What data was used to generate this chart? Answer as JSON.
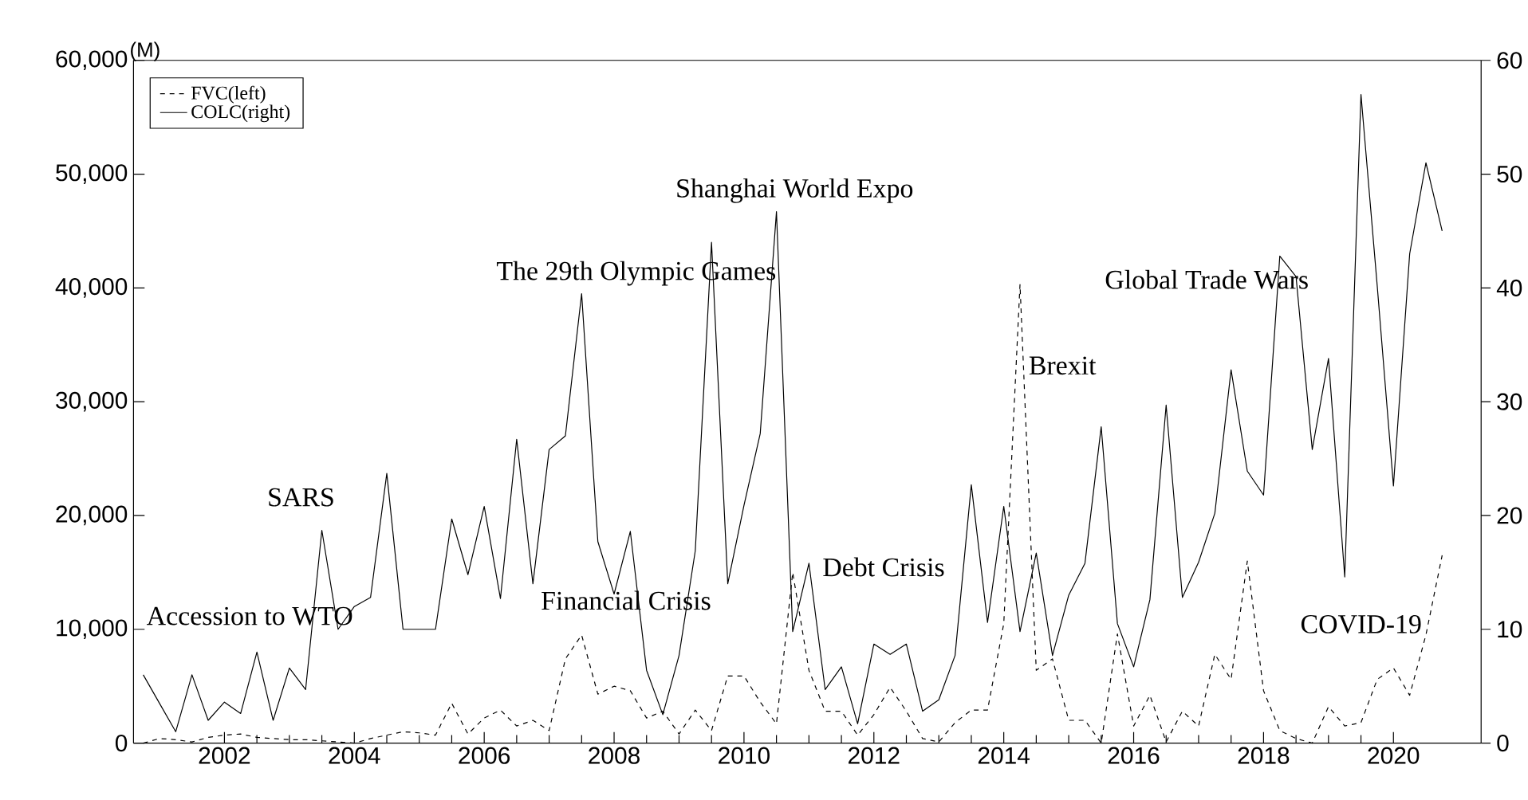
{
  "chart_data": {
    "type": "line",
    "ylabel": "(M)",
    "x": [
      2000.75,
      2001.0,
      2001.25,
      2001.5,
      2001.75,
      2002.0,
      2002.25,
      2002.5,
      2002.75,
      2003.0,
      2003.25,
      2003.5,
      2003.75,
      2004.0,
      2004.25,
      2004.5,
      2004.75,
      2005.0,
      2005.25,
      2005.5,
      2005.75,
      2006.0,
      2006.25,
      2006.5,
      2006.75,
      2007.0,
      2007.25,
      2007.5,
      2007.75,
      2008.0,
      2008.25,
      2008.5,
      2008.75,
      2009.0,
      2009.25,
      2009.5,
      2009.75,
      2010.0,
      2010.25,
      2010.5,
      2010.75,
      2011.0,
      2011.25,
      2011.5,
      2011.75,
      2012.0,
      2012.25,
      2012.5,
      2012.75,
      2013.0,
      2013.25,
      2013.5,
      2013.75,
      2014.0,
      2014.25,
      2014.5,
      2014.75,
      2015.0,
      2015.25,
      2015.5,
      2015.75,
      2016.0,
      2016.25,
      2016.5,
      2016.75,
      2017.0,
      2017.25,
      2017.5,
      2017.75,
      2018.0,
      2018.25,
      2018.5,
      2018.75,
      2019.0,
      2019.25,
      2019.5,
      2019.75,
      2020.0,
      2020.25,
      2020.5,
      2020.75
    ],
    "series": [
      {
        "name": "FVC(left)",
        "color": "#000000",
        "line_style": "dashed",
        "values": [
          0,
          400,
          300,
          100,
          500,
          700,
          800,
          500,
          400,
          300,
          300,
          200,
          100,
          0,
          400,
          700,
          1000,
          900,
          700,
          3500,
          800,
          2200,
          2900,
          1500,
          2000,
          1100,
          7400,
          9500,
          4300,
          5000,
          4600,
          2200,
          2800,
          800,
          2900,
          1100,
          5900,
          5900,
          3600,
          1700,
          15000,
          6400,
          2800,
          2800,
          700,
          2500,
          4900,
          2800,
          400,
          100,
          1800,
          2900,
          2900,
          10500,
          40300,
          6400,
          7400,
          2000,
          2000,
          0,
          9600,
          1500,
          4200,
          100,
          2800,
          1500,
          7800,
          5600,
          16000,
          4600,
          1100,
          400,
          0,
          3200,
          1500,
          1800,
          5600,
          6600,
          4200,
          9500,
          16500
        ]
      },
      {
        "name": "COLC(right)",
        "color": "#000000",
        "line_style": "solid",
        "axis": "y2",
        "values": [
          6,
          3.5,
          1,
          6,
          2,
          3.6,
          2.6,
          8,
          2,
          6.6,
          4.7,
          18.7,
          10,
          12,
          12.8,
          23.7,
          10,
          10,
          10,
          19.7,
          14.8,
          20.8,
          12.7,
          26.7,
          14,
          25.8,
          27,
          39.5,
          17.7,
          13.1,
          18.6,
          6.4,
          2.5,
          7.7,
          16.9,
          44,
          14,
          20.9,
          27.2,
          46.7,
          9.8,
          15.8,
          4.7,
          6.7,
          1.7,
          8.7,
          7.8,
          8.7,
          2.8,
          3.8,
          7.7,
          22.7,
          10.6,
          20.8,
          9.8,
          16.7,
          7.7,
          13,
          15.8,
          27.8,
          10.5,
          6.7,
          12.6,
          29.7,
          12.8,
          15.9,
          20.2,
          32.8,
          23.9,
          21.8,
          42.8,
          41,
          25.8,
          33.8,
          14.6,
          57,
          40.2,
          22.6,
          43,
          51,
          45
        ]
      }
    ],
    "xlim": [
      2000.6,
      2021.35
    ],
    "xticks": [
      2002,
      2004,
      2006,
      2008,
      2010,
      2012,
      2014,
      2016,
      2018,
      2020
    ],
    "ylim": [
      0,
      60000
    ],
    "yticks": [
      0,
      {
        "value": 10000,
        "label": "10,000"
      },
      {
        "value": 20000,
        "label": "20,000"
      },
      {
        "value": 30000,
        "label": "30,000"
      },
      {
        "value": 40000,
        "label": "40,000"
      },
      {
        "value": 50000,
        "label": "50,000"
      },
      {
        "value": 60000,
        "label": "60,000"
      }
    ],
    "y2lim": [
      0,
      60
    ],
    "y2ticks": [
      0,
      10,
      20,
      30,
      40,
      50,
      60
    ],
    "legend": "top left",
    "grid": false,
    "annotations": [
      "Accession to WTO",
      "SARS",
      "Financial Crisis",
      "The 29th Olympic Games",
      "Shanghai World Expo",
      "Debt Crisis",
      "Brexit",
      "Global Trade Wars",
      "COVID-19"
    ]
  }
}
